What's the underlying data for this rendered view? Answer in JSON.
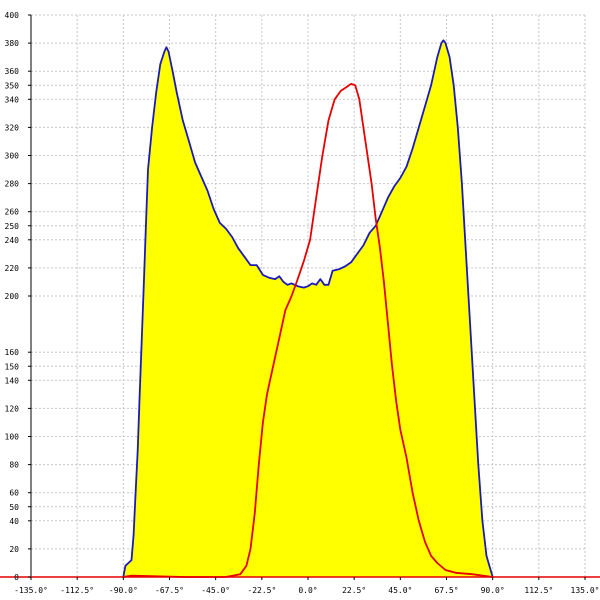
{
  "chart_data": {
    "type": "area",
    "title": "",
    "xlabel": "",
    "ylabel": "",
    "xlim": [
      -135,
      135
    ],
    "ylim": [
      0,
      400
    ],
    "grid": true,
    "legend": "none",
    "x_ticks": [
      {
        "value": -135,
        "label": "-135.0°"
      },
      {
        "value": -112.5,
        "label": "-112.5°"
      },
      {
        "value": -90,
        "label": "-90.0°"
      },
      {
        "value": -67.5,
        "label": "-67.5°"
      },
      {
        "value": -45,
        "label": "-45.0°"
      },
      {
        "value": -22.5,
        "label": "-22.5°"
      },
      {
        "value": 0,
        "label": "0.0°"
      },
      {
        "value": 22.5,
        "label": "22.5°"
      },
      {
        "value": 45,
        "label": "45.0°"
      },
      {
        "value": 67.5,
        "label": "67.5°"
      },
      {
        "value": 90,
        "label": "90.0°"
      },
      {
        "value": 112.5,
        "label": "112.5°"
      },
      {
        "value": 135,
        "label": "135.0°"
      }
    ],
    "y_ticks": [
      0,
      20,
      40,
      50,
      60,
      80,
      100,
      120,
      140,
      150,
      160,
      200,
      220,
      240,
      250,
      260,
      280,
      300,
      320,
      340,
      350,
      360,
      380,
      400
    ],
    "series": [
      {
        "color": "#1a1ab8",
        "fill": "#ffff00",
        "points": [
          [
            -90,
            0
          ],
          [
            -89,
            8
          ],
          [
            -86,
            12
          ],
          [
            -85,
            30
          ],
          [
            -84,
            60
          ],
          [
            -83,
            90
          ],
          [
            -82,
            130
          ],
          [
            -81,
            170
          ],
          [
            -80,
            210
          ],
          [
            -79,
            250
          ],
          [
            -78,
            290
          ],
          [
            -76,
            320
          ],
          [
            -74,
            345
          ],
          [
            -72,
            365
          ],
          [
            -70,
            374
          ],
          [
            -69,
            377
          ],
          [
            -68,
            374
          ],
          [
            -66,
            360
          ],
          [
            -64,
            345
          ],
          [
            -61,
            325
          ],
          [
            -58,
            310
          ],
          [
            -55,
            295
          ],
          [
            -52,
            285
          ],
          [
            -49,
            275
          ],
          [
            -46,
            262
          ],
          [
            -43,
            252
          ],
          [
            -40,
            248
          ],
          [
            -37,
            242
          ],
          [
            -34,
            234
          ],
          [
            -31,
            228
          ],
          [
            -28,
            222
          ],
          [
            -25,
            222
          ],
          [
            -22,
            215
          ],
          [
            -19,
            213
          ],
          [
            -16,
            212
          ],
          [
            -14,
            214
          ],
          [
            -12,
            210
          ],
          [
            -10,
            208
          ],
          [
            -8,
            209
          ],
          [
            -5,
            207
          ],
          [
            -2,
            206
          ],
          [
            0,
            207
          ],
          [
            2,
            209
          ],
          [
            4,
            208
          ],
          [
            6,
            212
          ],
          [
            8,
            208
          ],
          [
            10,
            208
          ],
          [
            12,
            218
          ],
          [
            15,
            219
          ],
          [
            18,
            221
          ],
          [
            21,
            224
          ],
          [
            24,
            230
          ],
          [
            27,
            236
          ],
          [
            30,
            245
          ],
          [
            33,
            250
          ],
          [
            36,
            260
          ],
          [
            39,
            270
          ],
          [
            42,
            278
          ],
          [
            45,
            284
          ],
          [
            48,
            292
          ],
          [
            51,
            305
          ],
          [
            54,
            320
          ],
          [
            57,
            335
          ],
          [
            60,
            350
          ],
          [
            63,
            370
          ],
          [
            65,
            380
          ],
          [
            66,
            382
          ],
          [
            67,
            380
          ],
          [
            69,
            370
          ],
          [
            71,
            350
          ],
          [
            73,
            320
          ],
          [
            75,
            280
          ],
          [
            77,
            230
          ],
          [
            79,
            180
          ],
          [
            81,
            130
          ],
          [
            83,
            80
          ],
          [
            85,
            40
          ],
          [
            87,
            15
          ],
          [
            89,
            5
          ],
          [
            90,
            0
          ]
        ]
      },
      {
        "color": "#e60000",
        "fill": "none",
        "points": [
          [
            -90,
            0
          ],
          [
            -86,
            1
          ],
          [
            -60,
            0
          ],
          [
            -40,
            0
          ],
          [
            -33,
            2
          ],
          [
            -30,
            8
          ],
          [
            -28,
            20
          ],
          [
            -26,
            45
          ],
          [
            -24,
            80
          ],
          [
            -22,
            110
          ],
          [
            -20,
            130
          ],
          [
            -17,
            150
          ],
          [
            -14,
            170
          ],
          [
            -11,
            190
          ],
          [
            -8,
            200
          ],
          [
            -5,
            212
          ],
          [
            -2,
            225
          ],
          [
            1,
            240
          ],
          [
            4,
            270
          ],
          [
            7,
            300
          ],
          [
            10,
            325
          ],
          [
            13,
            340
          ],
          [
            16,
            346
          ],
          [
            19,
            349
          ],
          [
            21,
            351
          ],
          [
            23,
            350
          ],
          [
            25,
            340
          ],
          [
            27,
            320
          ],
          [
            29,
            300
          ],
          [
            31,
            280
          ],
          [
            33,
            255
          ],
          [
            35,
            235
          ],
          [
            37,
            210
          ],
          [
            39,
            180
          ],
          [
            41,
            150
          ],
          [
            43,
            125
          ],
          [
            45,
            105
          ],
          [
            48,
            85
          ],
          [
            51,
            60
          ],
          [
            54,
            40
          ],
          [
            57,
            25
          ],
          [
            60,
            15
          ],
          [
            63,
            10
          ],
          [
            67,
            5
          ],
          [
            72,
            3
          ],
          [
            80,
            2
          ],
          [
            90,
            0
          ]
        ]
      }
    ]
  }
}
